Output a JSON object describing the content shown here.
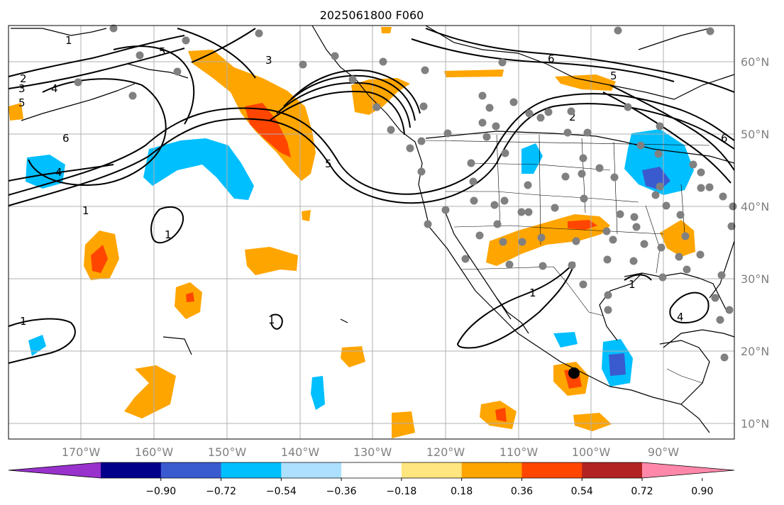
{
  "title": "2025061800 F060",
  "colors": {
    "orange": "#FFA500",
    "redorange": "#FF4500",
    "cyan": "#00BFFF",
    "blue": "#3A5BD0",
    "gray_dot": "#808080",
    "grid": "#b0b0b0"
  },
  "lon_labels": [
    "170°W",
    "160°W",
    "150°W",
    "140°W",
    "130°W",
    "120°W",
    "110°W",
    "100°W",
    "90°W"
  ],
  "lat_labels": [
    "60°N",
    "50°N",
    "40°N",
    "30°N",
    "20°N",
    "10°N"
  ],
  "colorbar": {
    "colors": [
      "#9932CC",
      "#00008B",
      "#3A5BD0",
      "#00BFFF",
      "#ADE0FF",
      "#FFFFFF",
      "#FFE680",
      "#FFA500",
      "#FF4500",
      "#B22222",
      "#FF88AA"
    ],
    "ticks": [
      "−0.90",
      "−0.72",
      "−0.54",
      "−0.36",
      "−0.18",
      "0.18",
      "0.36",
      "0.54",
      "0.72",
      "0.90"
    ]
  },
  "contour_labels": [
    "1",
    "2",
    "3",
    "4",
    "5",
    "6",
    "1",
    "1",
    "1",
    "1",
    "1",
    "1",
    "2",
    "4",
    "4",
    "5",
    "6",
    "5",
    "3",
    "6",
    "5"
  ],
  "markers": {
    "storm_center": "black-dot",
    "stations": "gray-dots"
  }
}
